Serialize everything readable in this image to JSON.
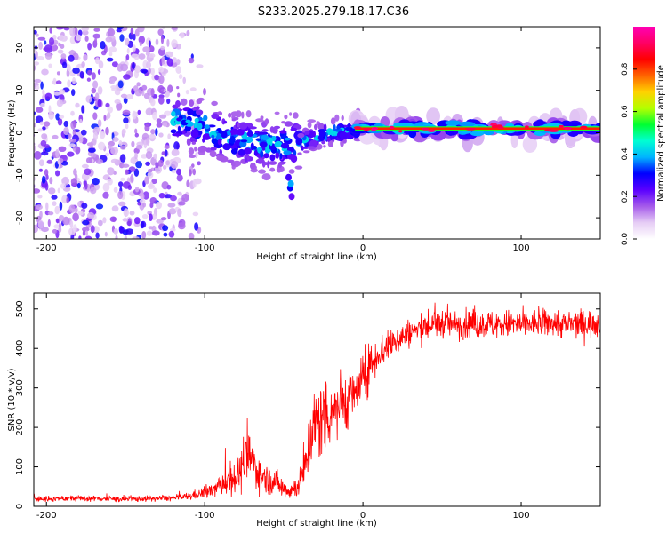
{
  "title": "S233.2025.279.18.17.C36",
  "chart_data": [
    {
      "type": "heatmap",
      "title": "S233.2025.279.18.17.C36",
      "xlabel": "Height of straight line (km)",
      "ylabel": "Frequency (Hz)",
      "xlim": [
        -208,
        150
      ],
      "ylim": [
        -25,
        25
      ],
      "x_ticks": [
        -200,
        -100,
        0,
        100
      ],
      "x_tick_labels": [
        "-200",
        "-100",
        "0",
        "100"
      ],
      "y_ticks": [
        -20,
        -10,
        0,
        10,
        20
      ],
      "y_tick_labels": [
        "-20",
        "-10",
        "0",
        "10",
        "20"
      ],
      "colorbar": {
        "label": "Normalized spectral amplitude",
        "range": [
          0,
          1
        ],
        "ticks": [
          0.0,
          0.2,
          0.4,
          0.6,
          0.8
        ],
        "tick_labels": [
          "0.0",
          "0.2",
          "0.4",
          "0.6",
          "0.8"
        ],
        "colors": [
          "#ffffff",
          "#e6cdf5",
          "#a55aea",
          "#5a00ff",
          "#0000ff",
          "#00b4ff",
          "#00ffd2",
          "#00ff32",
          "#b4ff00",
          "#ffd200",
          "#ff6400",
          "#ff0000",
          "#ff0064",
          "#ff00b4"
        ]
      },
      "features": {
        "noise_region_x": [
          -208,
          -100
        ],
        "descending_band": [
          {
            "x": -120,
            "y": 3
          },
          {
            "x": -100,
            "y": 1.5
          },
          {
            "x": -85,
            "y": -1.5
          },
          {
            "x": -70,
            "y": -2.5
          },
          {
            "x": -55,
            "y": -3
          },
          {
            "x": -40,
            "y": -2.5
          },
          {
            "x": -30,
            "y": -1
          },
          {
            "x": -20,
            "y": 0
          },
          {
            "x": -10,
            "y": 0.5
          },
          {
            "x": 0,
            "y": 1
          }
        ],
        "isolated_blob": {
          "x": -46,
          "y": -13
        },
        "strong_line": {
          "x_start": -5,
          "x_end": 150,
          "y": 1
        }
      }
    },
    {
      "type": "line",
      "xlabel": "Height of straight line (km)",
      "ylabel": "SNR (10 * v/v)",
      "xlim": [
        -208,
        150
      ],
      "ylim": [
        0,
        540
      ],
      "x_ticks": [
        -200,
        -100,
        0,
        100
      ],
      "x_tick_labels": [
        "-200",
        "-100",
        "0",
        "100"
      ],
      "y_ticks": [
        0,
        100,
        200,
        300,
        400,
        500
      ],
      "y_tick_labels": [
        "0",
        "100",
        "200",
        "300",
        "400",
        "500"
      ],
      "series": [
        {
          "name": "SNR",
          "color": "#ff0000",
          "x": [
            -208,
            -190,
            -170,
            -150,
            -130,
            -115,
            -105,
            -95,
            -90,
            -85,
            -80,
            -75,
            -72,
            -68,
            -65,
            -60,
            -55,
            -50,
            -45,
            -40,
            -37,
            -35,
            -33,
            -30,
            -25,
            -20,
            -15,
            -10,
            -5,
            0,
            5,
            10,
            15,
            20,
            25,
            30,
            40,
            50,
            60,
            70,
            80,
            90,
            100,
            110,
            120,
            130,
            140,
            150
          ],
          "values": [
            18,
            20,
            20,
            18,
            20,
            22,
            30,
            40,
            55,
            70,
            75,
            100,
            130,
            100,
            80,
            70,
            60,
            45,
            40,
            60,
            90,
            130,
            180,
            200,
            230,
            240,
            260,
            270,
            285,
            320,
            360,
            390,
            400,
            420,
            430,
            440,
            455,
            465,
            460,
            462,
            460,
            462,
            460,
            462,
            465,
            460,
            462,
            465
          ],
          "noise": [
            6,
            6,
            6,
            6,
            6,
            7,
            10,
            15,
            25,
            35,
            35,
            50,
            55,
            45,
            35,
            30,
            28,
            22,
            20,
            30,
            40,
            55,
            80,
            90,
            80,
            75,
            70,
            60,
            55,
            50,
            45,
            40,
            35,
            35,
            30,
            30,
            30,
            30,
            30,
            30,
            30,
            30,
            30,
            30,
            30,
            30,
            30,
            30
          ]
        }
      ]
    }
  ]
}
